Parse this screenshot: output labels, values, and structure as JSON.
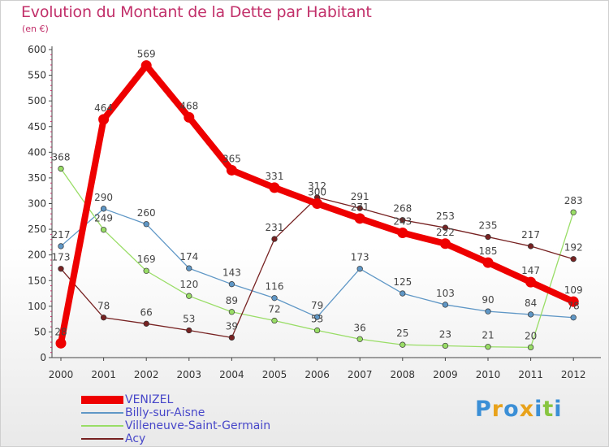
{
  "chart_data": {
    "type": "line",
    "title": "Evolution du Montant de la Dette par Habitant",
    "subtitle": "(en €)",
    "x": [
      "2000",
      "2001",
      "2002",
      "2003",
      "2004",
      "2005",
      "2006",
      "2007",
      "2008",
      "2009",
      "2010",
      "2011",
      "2012"
    ],
    "yticks": [
      "0",
      "50",
      "100",
      "150",
      "200",
      "250",
      "300",
      "350",
      "400",
      "450",
      "500",
      "550",
      "600"
    ],
    "ylim": [
      0,
      600
    ],
    "grid": false,
    "legend_position": "bottom-left",
    "series": [
      {
        "name": "VENIZEL",
        "color": "#ee0000",
        "values": [
          28,
          464,
          569,
          468,
          365,
          331,
          300,
          271,
          243,
          222,
          185,
          147,
          109
        ],
        "labels": [
          "28",
          "464",
          "569",
          "468",
          "365",
          "331",
          "300",
          "271",
          "243",
          "222",
          "185",
          "147",
          "109"
        ]
      },
      {
        "name": "Billy-sur-Aisne",
        "color": "#5f97c6",
        "values": [
          217,
          290,
          260,
          174,
          143,
          116,
          79,
          173,
          125,
          103,
          90,
          84,
          78
        ],
        "labels": [
          "217",
          "290",
          "260",
          "174",
          "143",
          "116",
          "79",
          "173",
          "125",
          "103",
          "90",
          "84",
          "78"
        ]
      },
      {
        "name": "Villeneuve-Saint-Germain",
        "color": "#99dd66",
        "values": [
          368,
          249,
          169,
          120,
          89,
          72,
          53,
          36,
          25,
          23,
          21,
          20,
          283
        ],
        "labels": [
          "368",
          "249",
          "169",
          "120",
          "89",
          "72",
          "53",
          "36",
          "25",
          "23",
          "21",
          "20",
          "283"
        ]
      },
      {
        "name": "Acy",
        "color": "#772222",
        "values": [
          173,
          78,
          66,
          53,
          39,
          231,
          312,
          291,
          268,
          253,
          235,
          217,
          192
        ],
        "labels": [
          "173",
          "78",
          "66",
          "53",
          "39",
          "231",
          "312",
          "291",
          "268",
          "253",
          "235",
          "217",
          "192"
        ]
      }
    ]
  },
  "logo": {
    "text": "Proxiti",
    "letter_colors": [
      "#3b8fd6",
      "#e8a21b",
      "#3b8fd6",
      "#e8a21b",
      "#3b8fd6",
      "#88c540",
      "#3b8fd6"
    ]
  }
}
